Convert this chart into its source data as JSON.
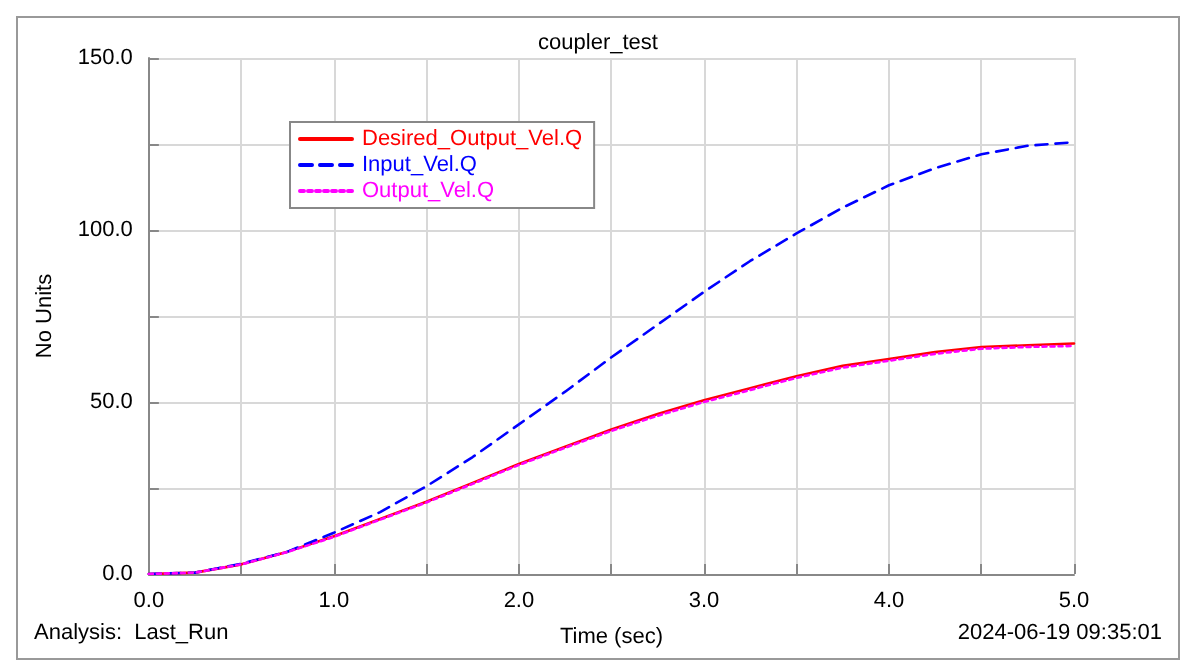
{
  "chart_data": {
    "type": "line",
    "title": "coupler_test",
    "xlabel": "Time (sec)",
    "ylabel": "No Units",
    "x": [
      0,
      0.25,
      0.5,
      0.75,
      1.0,
      1.25,
      1.5,
      1.75,
      2.0,
      2.25,
      2.5,
      2.75,
      3.0,
      3.25,
      3.5,
      3.75,
      4.0,
      4.25,
      4.5,
      4.75,
      5.0
    ],
    "series": [
      {
        "name": "Desired_Output_Vel.Q",
        "color": "#ff0000",
        "line_style": "solid",
        "values": [
          0,
          0.4,
          2.8,
          6.5,
          11,
          16,
          21,
          26.5,
          32,
          37,
          42,
          46.5,
          50.5,
          54,
          57.5,
          60.5,
          62.5,
          64.5,
          66,
          66.5,
          67
        ]
      },
      {
        "name": "Input_Vel.Q",
        "color": "#0000ff",
        "line_style": "dashed",
        "values": [
          0,
          0.4,
          3.0,
          6.5,
          12,
          18,
          25.5,
          34,
          43.5,
          53,
          63,
          72.5,
          82,
          91,
          99,
          106.5,
          113,
          118,
          122,
          124.5,
          125.5
        ]
      },
      {
        "name": "Output_Vel.Q",
        "color": "#ff00ff",
        "line_style": "dotted",
        "values": [
          0,
          0.4,
          2.8,
          6.4,
          10.8,
          15.8,
          20.8,
          26.2,
          31.7,
          36.7,
          41.6,
          46,
          50,
          53.5,
          57,
          60,
          62,
          64,
          65.5,
          66,
          66.3
        ]
      }
    ],
    "xlim": [
      0,
      5
    ],
    "xticks": [
      {
        "value": 0,
        "label": "0.0"
      },
      {
        "value": 0.5,
        "label": null
      },
      {
        "value": 1,
        "label": "1.0"
      },
      {
        "value": 1.5,
        "label": null
      },
      {
        "value": 2,
        "label": "2.0"
      },
      {
        "value": 2.5,
        "label": null
      },
      {
        "value": 3,
        "label": "3.0"
      },
      {
        "value": 3.5,
        "label": null
      },
      {
        "value": 4,
        "label": "4.0"
      },
      {
        "value": 4.5,
        "label": null
      },
      {
        "value": 5,
        "label": "5.0"
      }
    ],
    "ylim": [
      0,
      150
    ],
    "yticks": [
      {
        "value": 0,
        "label": "0.0"
      },
      {
        "value": 25,
        "label": null
      },
      {
        "value": 50,
        "label": "50.0"
      },
      {
        "value": 75,
        "label": null
      },
      {
        "value": 100,
        "label": "100.0"
      },
      {
        "value": 125,
        "label": null
      },
      {
        "value": 150,
        "label": "150.0"
      }
    ],
    "grid": true,
    "legend": "top left",
    "marker": "none",
    "annotations": [
      "Analysis:  Last_Run",
      "2024-06-19 09:35:01"
    ]
  }
}
